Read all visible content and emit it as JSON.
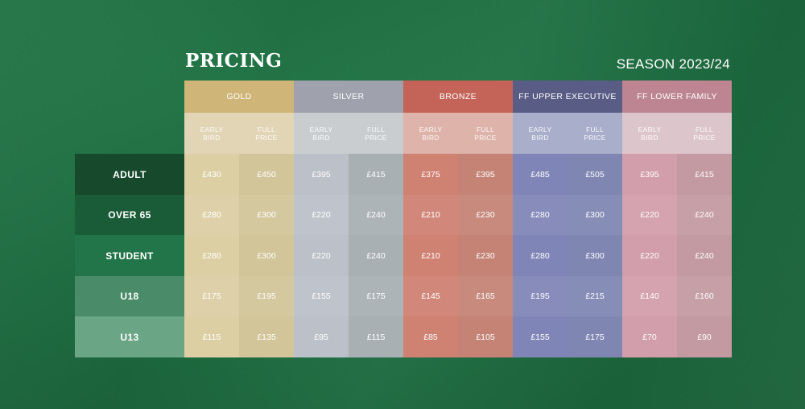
{
  "header": {
    "title": "PRICING",
    "season": "SEASON 2023/24"
  },
  "tiers": [
    {
      "name": "GOLD",
      "header_color": "#cfb578",
      "sub_color": "#e1d5b6",
      "colors": [
        "#dccfa4",
        "#d2c59a"
      ]
    },
    {
      "name": "SILVER",
      "header_color": "#9fa2ad",
      "sub_color": "#c9cdd0",
      "colors": [
        "#bcc0c8",
        "#a8b0b4"
      ]
    },
    {
      "name": "BRONZE",
      "header_color": "#c46458",
      "sub_color": "#deb3a9",
      "colors": [
        "#cf8172",
        "#c48375"
      ]
    },
    {
      "name": "FF UPPER EXECUTIVE",
      "header_color": "#595d85",
      "sub_color": "#a9aeca",
      "colors": [
        "#8085b7",
        "#7f86b2"
      ]
    },
    {
      "name": "FF LOWER FAMILY",
      "header_color": "#bd8592",
      "sub_color": "#ddc6cb",
      "colors": [
        "#d29eab",
        "#c39aa2"
      ]
    }
  ],
  "sub_headers": [
    "EARLY\nBIRD",
    "FULL\nPRICE"
  ],
  "rows": [
    {
      "label": "ADULT",
      "color": "#174a2d",
      "prices": [
        "£430",
        "£450",
        "£395",
        "£415",
        "£375",
        "£395",
        "£485",
        "£505",
        "£395",
        "£415"
      ]
    },
    {
      "label": "OVER 65",
      "color": "#1b5c38",
      "prices": [
        "£280",
        "£300",
        "£220",
        "£240",
        "£210",
        "£230",
        "£280",
        "£300",
        "£220",
        "£240"
      ]
    },
    {
      "label": "STUDENT",
      "color": "#227548",
      "prices": [
        "£280",
        "£300",
        "£220",
        "£240",
        "£210",
        "£230",
        "£280",
        "£300",
        "£220",
        "£240"
      ]
    },
    {
      "label": "U18",
      "color": "#4a8c69",
      "prices": [
        "£175",
        "£195",
        "£155",
        "£175",
        "£145",
        "£165",
        "£195",
        "£215",
        "£140",
        "£160"
      ]
    },
    {
      "label": "U13",
      "color": "#6aa586",
      "prices": [
        "£115",
        "£135",
        "£95",
        "£115",
        "£85",
        "£105",
        "£155",
        "£175",
        "£70",
        "£90"
      ]
    }
  ]
}
